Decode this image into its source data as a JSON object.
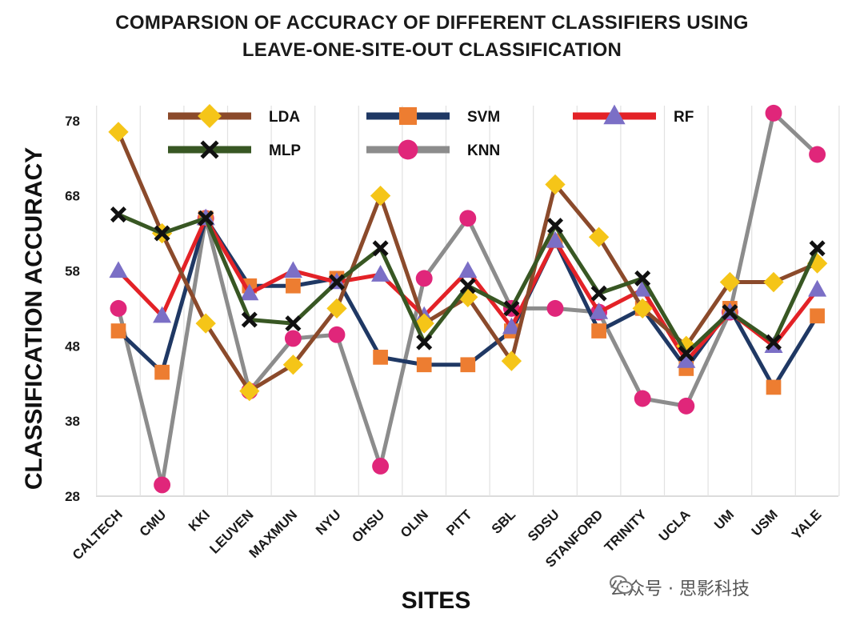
{
  "chart_data": {
    "type": "line",
    "title_lines": [
      "COMPARSION OF ACCURACY OF DIFFERENT CLASSIFIERS USING",
      "LEAVE-ONE-SITE-OUT CLASSIFICATION"
    ],
    "xlabel": "SITES",
    "ylabel": "CLASSIFICATION ACCURACY",
    "ylim": [
      28,
      80
    ],
    "yticks": [
      28,
      38,
      48,
      58,
      68,
      78
    ],
    "grid": "vertical",
    "legend_placement": "top",
    "categories": [
      "CALTECH",
      "CMU",
      "KKI",
      "LEUVEN",
      "MAXMUN",
      "NYU",
      "OHSU",
      "OLIN",
      "PITT",
      "SBL",
      "SDSU",
      "STANFORD",
      "TRINITY",
      "UCLA",
      "UM",
      "USM",
      "YALE"
    ],
    "series": [
      {
        "name": "LDA",
        "color": "#8B4A2B",
        "marker": "diamond",
        "marker_color": "#F5C518",
        "values": [
          76.5,
          63,
          51,
          42,
          45.5,
          53,
          68,
          51,
          54.5,
          46,
          69.5,
          62.5,
          53,
          48,
          56.5,
          56.5,
          59
        ]
      },
      {
        "name": "SVM",
        "color": "#1F3864",
        "marker": "square",
        "marker_color": "#ED7D31",
        "values": [
          50,
          44.5,
          65,
          56,
          56,
          57,
          46.5,
          45.5,
          45.5,
          50,
          62,
          50,
          53,
          45,
          53,
          42.5,
          52
        ]
      },
      {
        "name": "RF",
        "color": "#E32227",
        "marker": "triangle",
        "marker_color": "#7B6FC6",
        "values": [
          58,
          52,
          65,
          55,
          58,
          56.5,
          57.5,
          52,
          58,
          50.5,
          62,
          52.5,
          55.5,
          46,
          52.5,
          48,
          55.5
        ]
      },
      {
        "name": "MLP",
        "color": "#385723",
        "marker": "x",
        "marker_color": "#111111",
        "values": [
          65.5,
          63,
          65,
          51.5,
          51,
          56.5,
          61,
          48.5,
          56,
          53,
          64,
          55,
          57,
          47,
          52.5,
          48.5,
          61
        ]
      },
      {
        "name": "KNN",
        "color": "#8C8C8C",
        "marker": "circle",
        "marker_color": "#E0267A",
        "values": [
          53,
          29.5,
          65,
          42,
          49,
          49.5,
          32,
          57,
          65,
          53,
          53,
          52.5,
          41,
          40,
          52.5,
          79,
          73.5
        ]
      }
    ],
    "legend": [
      {
        "series": "LDA",
        "row": 0,
        "col": 0
      },
      {
        "series": "SVM",
        "row": 0,
        "col": 1
      },
      {
        "series": "RF",
        "row": 0,
        "col": 2
      },
      {
        "series": "MLP",
        "row": 1,
        "col": 0
      },
      {
        "series": "KNN",
        "row": 1,
        "col": 1
      }
    ]
  },
  "watermark": {
    "text": "公众号 · 思影科技",
    "icon": "wechat-icon"
  }
}
